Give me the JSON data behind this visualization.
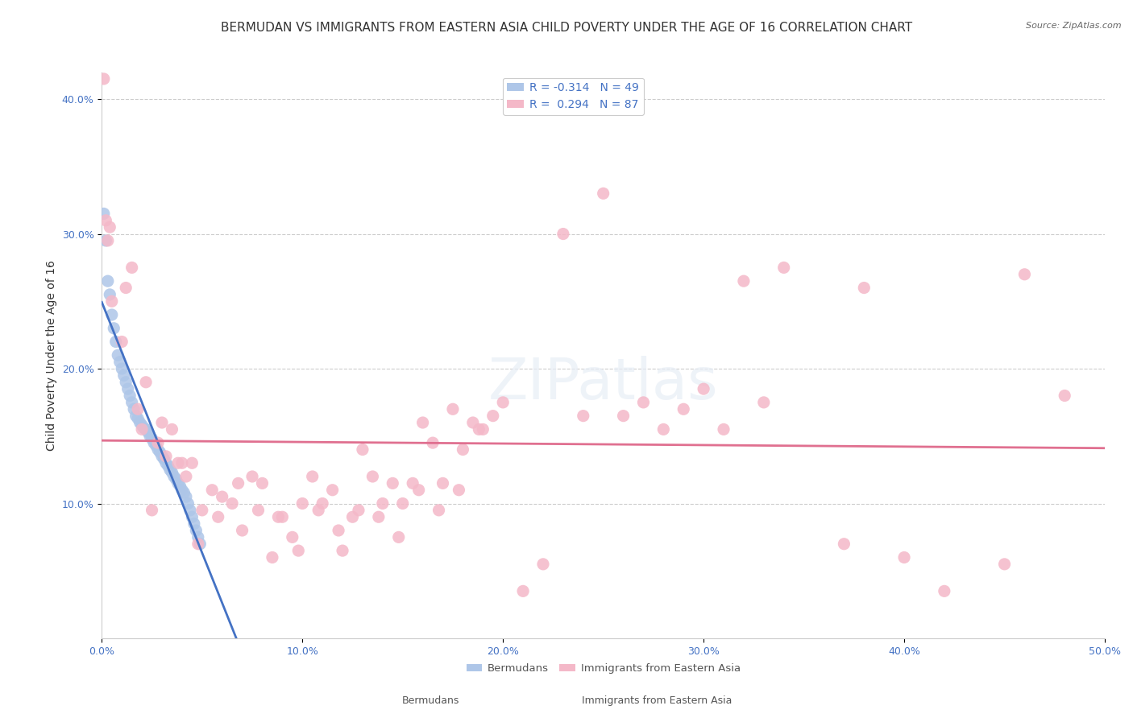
{
  "title": "BERMUDAN VS IMMIGRANTS FROM EASTERN ASIA CHILD POVERTY UNDER THE AGE OF 16 CORRELATION CHART",
  "source": "Source: ZipAtlas.com",
  "ylabel": "Child Poverty Under the Age of 16",
  "xlabel": "",
  "xlim": [
    0,
    0.5
  ],
  "ylim": [
    0,
    0.42
  ],
  "watermark": "ZIPatlas",
  "legend_entries": [
    {
      "label": "R = -0.314   N = 49",
      "color": "#aec6e8"
    },
    {
      "label": "R =  0.294   N = 87",
      "color": "#f4b8c8"
    }
  ],
  "bermudans": {
    "color": "#aec6e8",
    "line_color": "#4472c4",
    "R": -0.314,
    "N": 49,
    "x": [
      0.001,
      0.002,
      0.003,
      0.004,
      0.005,
      0.006,
      0.007,
      0.008,
      0.009,
      0.01,
      0.011,
      0.012,
      0.013,
      0.014,
      0.015,
      0.016,
      0.017,
      0.018,
      0.019,
      0.02,
      0.021,
      0.022,
      0.023,
      0.024,
      0.025,
      0.026,
      0.027,
      0.028,
      0.029,
      0.03,
      0.031,
      0.032,
      0.033,
      0.034,
      0.035,
      0.036,
      0.037,
      0.038,
      0.039,
      0.04,
      0.041,
      0.042,
      0.043,
      0.044,
      0.045,
      0.046,
      0.047,
      0.048,
      0.049
    ],
    "y": [
      0.315,
      0.295,
      0.265,
      0.255,
      0.24,
      0.23,
      0.22,
      0.21,
      0.205,
      0.2,
      0.195,
      0.19,
      0.185,
      0.18,
      0.175,
      0.17,
      0.165,
      0.163,
      0.16,
      0.158,
      0.156,
      0.155,
      0.153,
      0.15,
      0.148,
      0.145,
      0.143,
      0.14,
      0.138,
      0.135,
      0.133,
      0.13,
      0.128,
      0.125,
      0.123,
      0.12,
      0.118,
      0.115,
      0.113,
      0.11,
      0.108,
      0.105,
      0.1,
      0.095,
      0.09,
      0.085,
      0.08,
      0.075,
      0.07
    ]
  },
  "eastern_asia": {
    "color": "#f4b8c8",
    "line_color": "#e07090",
    "R": 0.294,
    "N": 87,
    "x": [
      0.001,
      0.002,
      0.003,
      0.004,
      0.005,
      0.01,
      0.012,
      0.015,
      0.018,
      0.02,
      0.022,
      0.025,
      0.028,
      0.03,
      0.032,
      0.035,
      0.038,
      0.04,
      0.042,
      0.045,
      0.048,
      0.05,
      0.055,
      0.058,
      0.06,
      0.065,
      0.068,
      0.07,
      0.075,
      0.078,
      0.08,
      0.085,
      0.088,
      0.09,
      0.095,
      0.098,
      0.1,
      0.105,
      0.108,
      0.11,
      0.115,
      0.118,
      0.12,
      0.125,
      0.128,
      0.13,
      0.135,
      0.138,
      0.14,
      0.145,
      0.148,
      0.15,
      0.155,
      0.158,
      0.16,
      0.165,
      0.168,
      0.17,
      0.175,
      0.178,
      0.18,
      0.185,
      0.188,
      0.19,
      0.195,
      0.2,
      0.21,
      0.22,
      0.23,
      0.24,
      0.25,
      0.26,
      0.27,
      0.28,
      0.29,
      0.3,
      0.31,
      0.32,
      0.33,
      0.34,
      0.37,
      0.38,
      0.4,
      0.42,
      0.45,
      0.46,
      0.48
    ],
    "y": [
      0.415,
      0.31,
      0.295,
      0.305,
      0.25,
      0.22,
      0.26,
      0.275,
      0.17,
      0.155,
      0.19,
      0.095,
      0.145,
      0.16,
      0.135,
      0.155,
      0.13,
      0.13,
      0.12,
      0.13,
      0.07,
      0.095,
      0.11,
      0.09,
      0.105,
      0.1,
      0.115,
      0.08,
      0.12,
      0.095,
      0.115,
      0.06,
      0.09,
      0.09,
      0.075,
      0.065,
      0.1,
      0.12,
      0.095,
      0.1,
      0.11,
      0.08,
      0.065,
      0.09,
      0.095,
      0.14,
      0.12,
      0.09,
      0.1,
      0.115,
      0.075,
      0.1,
      0.115,
      0.11,
      0.16,
      0.145,
      0.095,
      0.115,
      0.17,
      0.11,
      0.14,
      0.16,
      0.155,
      0.155,
      0.165,
      0.175,
      0.035,
      0.055,
      0.3,
      0.165,
      0.33,
      0.165,
      0.175,
      0.155,
      0.17,
      0.185,
      0.155,
      0.265,
      0.175,
      0.275,
      0.07,
      0.26,
      0.06,
      0.035,
      0.055,
      0.27,
      0.18
    ]
  },
  "xtick_labels": [
    "0.0%",
    "10.0%",
    "20.0%",
    "30.0%",
    "40.0%",
    "50.0%"
  ],
  "xtick_values": [
    0.0,
    0.1,
    0.2,
    0.3,
    0.4,
    0.5
  ],
  "ytick_labels": [
    "10.0%",
    "20.0%",
    "30.0%",
    "40.0%"
  ],
  "ytick_values": [
    0.1,
    0.2,
    0.3,
    0.4
  ],
  "background_color": "#ffffff",
  "title_fontsize": 11,
  "label_fontsize": 10,
  "tick_fontsize": 9
}
